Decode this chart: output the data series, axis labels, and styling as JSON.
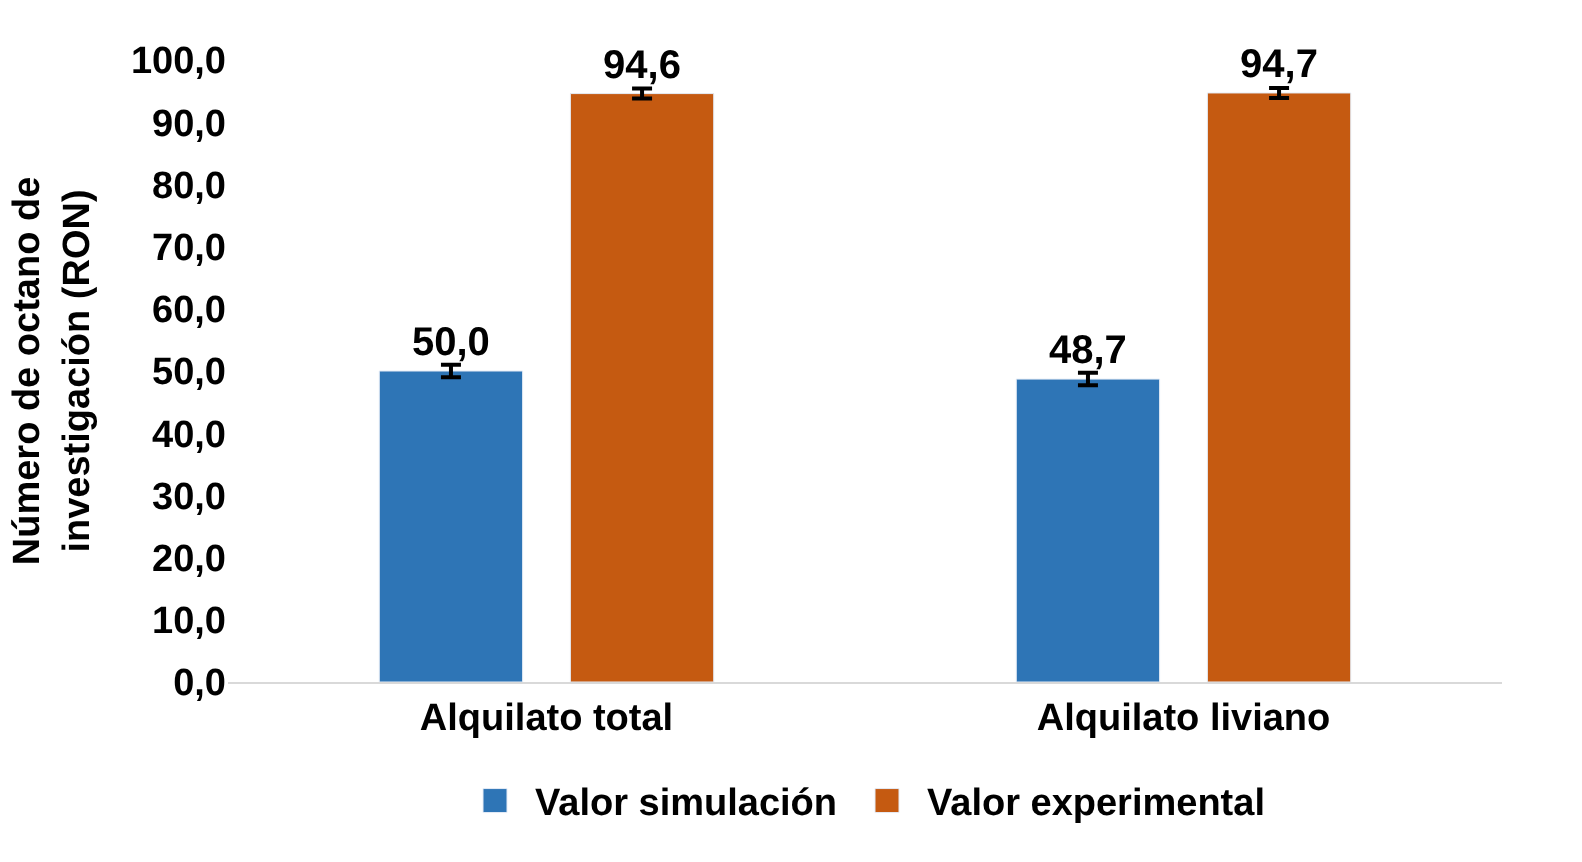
{
  "chart_data": {
    "type": "bar",
    "ylabel": "Número de octano de investigación (RON)",
    "categories": [
      "Alquilato total",
      "Alquilato liviano"
    ],
    "series": [
      {
        "name": "Valor simulación",
        "color": "#2e75b6",
        "values": [
          50.0,
          48.7
        ],
        "errors": [
          1.0,
          1.0
        ],
        "value_labels": [
          "50,0",
          "48,7"
        ]
      },
      {
        "name": "Valor experimental",
        "color": "#c55a11",
        "values": [
          94.6,
          94.7
        ],
        "errors": [
          0.8,
          0.8
        ],
        "value_labels": [
          "94,6",
          "94,7"
        ]
      }
    ],
    "ylim": [
      0,
      100
    ],
    "yticks": [
      {
        "value": 0,
        "label": "0,0"
      },
      {
        "value": 10,
        "label": "10,0"
      },
      {
        "value": 20,
        "label": "20,0"
      },
      {
        "value": 30,
        "label": "30,0"
      },
      {
        "value": 40,
        "label": "40,0"
      },
      {
        "value": 50,
        "label": "50,0"
      },
      {
        "value": 60,
        "label": "60,0"
      },
      {
        "value": 70,
        "label": "70,0"
      },
      {
        "value": 80,
        "label": "80,0"
      },
      {
        "value": 90,
        "label": "90,0"
      },
      {
        "value": 100,
        "label": "100,0"
      }
    ],
    "legend": "bottom"
  }
}
